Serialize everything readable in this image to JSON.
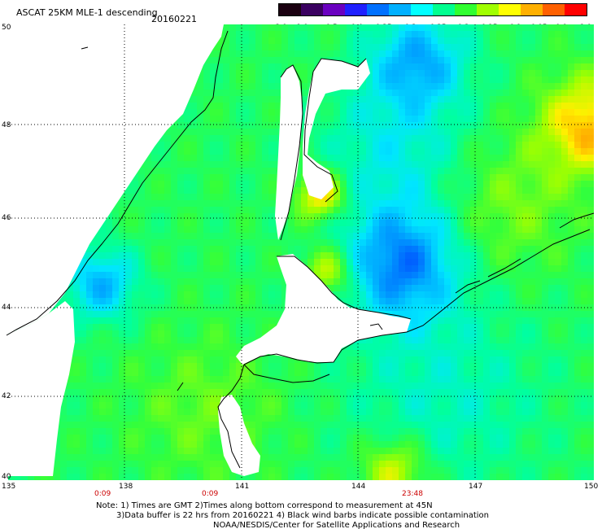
{
  "title": "ASCAT 25KM MLE-1 descending",
  "date": "20160221",
  "colorbar": {
    "labels": [
      "-3.0",
      "-1.0",
      "-0.5",
      "-0.4",
      "-0.35",
      "-0.3",
      "-0.25",
      "-0.2",
      "-0.15",
      "-0.1",
      "-0.05",
      "0.0",
      "1.0"
    ],
    "colors": [
      "#1a0010",
      "#3a0060",
      "#6a00c0",
      "#2020ff",
      "#0070ff",
      "#00b0ff",
      "#00ffff",
      "#00ff90",
      "#30ff30",
      "#a0ff00",
      "#ffff00",
      "#ffb000",
      "#ff6000",
      "#ff0000"
    ]
  },
  "lat_labels": [
    "50",
    "48",
    "46",
    "44",
    "42",
    "40"
  ],
  "lon_labels": [
    "135",
    "138",
    "141",
    "144",
    "147",
    "150"
  ],
  "time_labels": [
    "0:09",
    "0:09",
    "23:48"
  ],
  "notes": {
    "line1": "Note: 1) Times are GMT 2)Times along bottom correspond to measurement at 45N",
    "line2": "3)Data buffer is 22 hrs from 20160221 4) Black wind barbs indicate possible contamination",
    "line3": "NOAA/NESDIS/Center for Satellite Applications and Research"
  }
}
